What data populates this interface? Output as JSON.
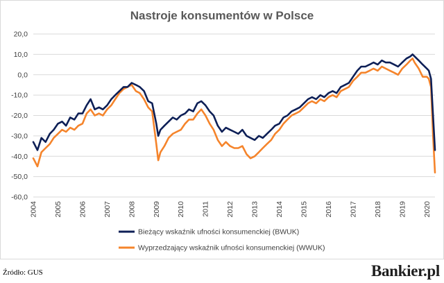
{
  "chart_data": {
    "type": "line",
    "title": "Nastroje konsumentów w Polsce",
    "ylim": [
      -60,
      20
    ],
    "yticks": [
      "20,0",
      "10,0",
      "0,0",
      "-10,0",
      "-20,0",
      "-30,0",
      "-40,0",
      "-50,0",
      "-60,0"
    ],
    "xlim": [
      2004.0,
      2020.33
    ],
    "xticks": [
      "2004",
      "2005",
      "2006",
      "2007",
      "2008",
      "2009",
      "2010",
      "2011",
      "2012",
      "2013",
      "2014",
      "2015",
      "2016",
      "2017",
      "2018",
      "2019",
      "2020"
    ],
    "grid": "horizontal",
    "legend_position": "bottom",
    "series": [
      {
        "name": "Bieżący wskaźnik ufności konsumenckiej (BWUK)",
        "color": "#0d1f56",
        "points": [
          [
            2004.0,
            -33
          ],
          [
            2004.17,
            -37
          ],
          [
            2004.33,
            -31
          ],
          [
            2004.5,
            -33
          ],
          [
            2004.67,
            -29
          ],
          [
            2004.83,
            -27
          ],
          [
            2005.0,
            -24
          ],
          [
            2005.17,
            -23
          ],
          [
            2005.33,
            -25
          ],
          [
            2005.5,
            -21
          ],
          [
            2005.67,
            -22
          ],
          [
            2005.83,
            -19
          ],
          [
            2006.0,
            -19
          ],
          [
            2006.17,
            -15
          ],
          [
            2006.33,
            -12
          ],
          [
            2006.5,
            -17
          ],
          [
            2006.67,
            -16
          ],
          [
            2006.83,
            -17
          ],
          [
            2007.0,
            -15
          ],
          [
            2007.17,
            -12
          ],
          [
            2007.33,
            -10
          ],
          [
            2007.5,
            -8
          ],
          [
            2007.67,
            -6
          ],
          [
            2007.83,
            -6
          ],
          [
            2008.0,
            -4
          ],
          [
            2008.17,
            -5
          ],
          [
            2008.33,
            -6
          ],
          [
            2008.5,
            -8
          ],
          [
            2008.67,
            -13
          ],
          [
            2008.83,
            -14
          ],
          [
            2009.0,
            -24
          ],
          [
            2009.08,
            -30
          ],
          [
            2009.17,
            -27
          ],
          [
            2009.33,
            -25
          ],
          [
            2009.5,
            -23
          ],
          [
            2009.67,
            -21
          ],
          [
            2009.83,
            -22
          ],
          [
            2010.0,
            -20
          ],
          [
            2010.17,
            -19
          ],
          [
            2010.33,
            -17
          ],
          [
            2010.5,
            -18
          ],
          [
            2010.67,
            -14
          ],
          [
            2010.83,
            -13
          ],
          [
            2011.0,
            -15
          ],
          [
            2011.17,
            -18
          ],
          [
            2011.33,
            -20
          ],
          [
            2011.5,
            -25
          ],
          [
            2011.67,
            -28
          ],
          [
            2011.83,
            -26
          ],
          [
            2012.0,
            -27
          ],
          [
            2012.17,
            -28
          ],
          [
            2012.33,
            -29
          ],
          [
            2012.5,
            -27
          ],
          [
            2012.67,
            -30
          ],
          [
            2012.83,
            -31
          ],
          [
            2013.0,
            -32
          ],
          [
            2013.17,
            -30
          ],
          [
            2013.33,
            -31
          ],
          [
            2013.5,
            -29
          ],
          [
            2013.67,
            -27
          ],
          [
            2013.83,
            -25
          ],
          [
            2014.0,
            -24
          ],
          [
            2014.17,
            -21
          ],
          [
            2014.33,
            -20
          ],
          [
            2014.5,
            -18
          ],
          [
            2014.67,
            -17
          ],
          [
            2014.83,
            -16
          ],
          [
            2015.0,
            -14
          ],
          [
            2015.17,
            -12
          ],
          [
            2015.33,
            -11
          ],
          [
            2015.5,
            -12
          ],
          [
            2015.67,
            -10
          ],
          [
            2015.83,
            -11
          ],
          [
            2016.0,
            -9
          ],
          [
            2016.17,
            -8
          ],
          [
            2016.33,
            -9
          ],
          [
            2016.5,
            -6
          ],
          [
            2016.67,
            -5
          ],
          [
            2016.83,
            -4
          ],
          [
            2017.0,
            -1
          ],
          [
            2017.17,
            2
          ],
          [
            2017.33,
            4
          ],
          [
            2017.5,
            4
          ],
          [
            2017.67,
            5
          ],
          [
            2017.83,
            6
          ],
          [
            2018.0,
            5
          ],
          [
            2018.17,
            7
          ],
          [
            2018.33,
            6
          ],
          [
            2018.5,
            6
          ],
          [
            2018.67,
            5
          ],
          [
            2018.83,
            4
          ],
          [
            2019.0,
            6
          ],
          [
            2019.17,
            8
          ],
          [
            2019.33,
            9
          ],
          [
            2019.42,
            10
          ],
          [
            2019.5,
            9
          ],
          [
            2019.67,
            7
          ],
          [
            2019.83,
            5
          ],
          [
            2020.0,
            3
          ],
          [
            2020.08,
            2
          ],
          [
            2020.17,
            -2
          ],
          [
            2020.25,
            -20
          ],
          [
            2020.33,
            -37
          ]
        ]
      },
      {
        "name": "Wyprzedzający wskaźnik ufności konsumenckiej (WWUK)",
        "color": "#f5842b",
        "points": [
          [
            2004.0,
            -41
          ],
          [
            2004.17,
            -45
          ],
          [
            2004.33,
            -38
          ],
          [
            2004.5,
            -36
          ],
          [
            2004.67,
            -34
          ],
          [
            2004.83,
            -31
          ],
          [
            2005.0,
            -29
          ],
          [
            2005.17,
            -27
          ],
          [
            2005.33,
            -28
          ],
          [
            2005.5,
            -26
          ],
          [
            2005.67,
            -27
          ],
          [
            2005.83,
            -25
          ],
          [
            2006.0,
            -24
          ],
          [
            2006.17,
            -19
          ],
          [
            2006.33,
            -17
          ],
          [
            2006.5,
            -20
          ],
          [
            2006.67,
            -19
          ],
          [
            2006.83,
            -20
          ],
          [
            2007.0,
            -17
          ],
          [
            2007.17,
            -15
          ],
          [
            2007.33,
            -12
          ],
          [
            2007.5,
            -9
          ],
          [
            2007.67,
            -7
          ],
          [
            2007.83,
            -6
          ],
          [
            2008.0,
            -5
          ],
          [
            2008.17,
            -8
          ],
          [
            2008.33,
            -9
          ],
          [
            2008.5,
            -12
          ],
          [
            2008.67,
            -16
          ],
          [
            2008.83,
            -18
          ],
          [
            2009.0,
            -34
          ],
          [
            2009.08,
            -42
          ],
          [
            2009.17,
            -38
          ],
          [
            2009.33,
            -35
          ],
          [
            2009.5,
            -31
          ],
          [
            2009.67,
            -29
          ],
          [
            2009.83,
            -28
          ],
          [
            2010.0,
            -27
          ],
          [
            2010.17,
            -24
          ],
          [
            2010.33,
            -22
          ],
          [
            2010.5,
            -22
          ],
          [
            2010.67,
            -19
          ],
          [
            2010.83,
            -17
          ],
          [
            2011.0,
            -20
          ],
          [
            2011.17,
            -24
          ],
          [
            2011.33,
            -27
          ],
          [
            2011.5,
            -32
          ],
          [
            2011.67,
            -35
          ],
          [
            2011.83,
            -33
          ],
          [
            2012.0,
            -35
          ],
          [
            2012.17,
            -36
          ],
          [
            2012.33,
            -36
          ],
          [
            2012.5,
            -35
          ],
          [
            2012.67,
            -39
          ],
          [
            2012.83,
            -41
          ],
          [
            2013.0,
            -40
          ],
          [
            2013.17,
            -38
          ],
          [
            2013.33,
            -36
          ],
          [
            2013.5,
            -34
          ],
          [
            2013.67,
            -32
          ],
          [
            2013.83,
            -29
          ],
          [
            2014.0,
            -27
          ],
          [
            2014.17,
            -24
          ],
          [
            2014.33,
            -22
          ],
          [
            2014.5,
            -20
          ],
          [
            2014.67,
            -19
          ],
          [
            2014.83,
            -18
          ],
          [
            2015.0,
            -16
          ],
          [
            2015.17,
            -14
          ],
          [
            2015.33,
            -13
          ],
          [
            2015.5,
            -14
          ],
          [
            2015.67,
            -12
          ],
          [
            2015.83,
            -13
          ],
          [
            2016.0,
            -11
          ],
          [
            2016.17,
            -10
          ],
          [
            2016.33,
            -11
          ],
          [
            2016.5,
            -8
          ],
          [
            2016.67,
            -7
          ],
          [
            2016.83,
            -6
          ],
          [
            2017.0,
            -3
          ],
          [
            2017.17,
            -1
          ],
          [
            2017.33,
            1
          ],
          [
            2017.5,
            1
          ],
          [
            2017.67,
            2
          ],
          [
            2017.83,
            3
          ],
          [
            2018.0,
            2
          ],
          [
            2018.17,
            4
          ],
          [
            2018.33,
            3
          ],
          [
            2018.5,
            2
          ],
          [
            2018.67,
            1
          ],
          [
            2018.83,
            0
          ],
          [
            2019.0,
            3
          ],
          [
            2019.17,
            5
          ],
          [
            2019.33,
            7
          ],
          [
            2019.42,
            8
          ],
          [
            2019.5,
            6
          ],
          [
            2019.67,
            3
          ],
          [
            2019.83,
            -1
          ],
          [
            2020.0,
            -1
          ],
          [
            2020.08,
            -2
          ],
          [
            2020.17,
            -6
          ],
          [
            2020.25,
            -30
          ],
          [
            2020.33,
            -48
          ]
        ]
      }
    ]
  },
  "footer": {
    "source": "Źródło: GUS",
    "brand": "Bankier.pl"
  }
}
